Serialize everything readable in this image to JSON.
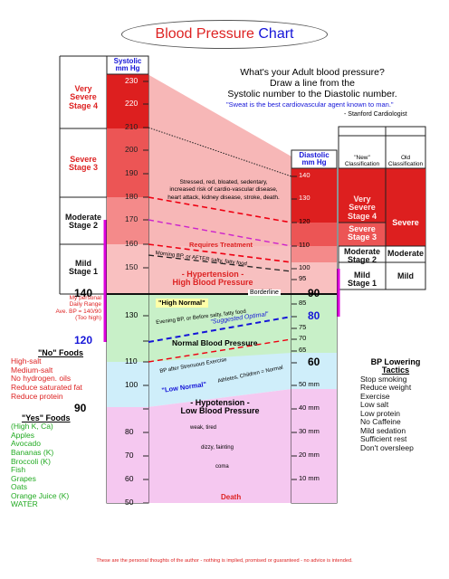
{
  "title": {
    "part1": "Blood Pressure",
    "part2": "Chart"
  },
  "intro": {
    "question": "What's your Adult blood pressure?",
    "instruction1": "Draw a line from the",
    "instruction2": "Systolic number to the Diastolic number.",
    "quote": "\"Sweat is the best cardiovascular agent known to man.\"",
    "cite": "- Stanford Cardiologist"
  },
  "systolic": {
    "header1": "Systolic",
    "header2": "mm Hg",
    "ticks": [
      "230",
      "220",
      "210",
      "200",
      "190",
      "180",
      "170",
      "160",
      "150",
      "140",
      "130",
      "120",
      "110",
      "100",
      "90",
      "80",
      "70",
      "60",
      "50"
    ]
  },
  "diastolic": {
    "header1": "Diastolic",
    "header2": "mm Hg",
    "ticks": [
      "140",
      "130",
      "120",
      "110",
      "100",
      "95",
      "90",
      "85",
      "80",
      "75",
      "70",
      "65",
      "60",
      "50 mm",
      "40 mm",
      "30 mm",
      "20 mm",
      "10 mm"
    ]
  },
  "left_stages": [
    {
      "l1": "Very",
      "l2": "Severe",
      "l3": "Stage 4"
    },
    {
      "l1": "Severe",
      "l2": "Stage 3",
      "l3": ""
    },
    {
      "l1": "Moderate",
      "l2": "Stage 2",
      "l3": ""
    },
    {
      "l1": "Mild",
      "l2": "Stage 1",
      "l3": ""
    }
  ],
  "right_new": {
    "header1": "\"New\"",
    "header2": "Classification",
    "very_severe": [
      "Very",
      "Severe",
      "Stage 4"
    ],
    "severe": [
      "Severe",
      "Stage 3"
    ],
    "moderate": [
      "Moderate",
      "Stage 2"
    ],
    "mild": [
      "Mild",
      "Stage 1"
    ]
  },
  "right_old": {
    "header1": "Old",
    "header2": "Classification",
    "severe": "Severe",
    "moderate": "Moderate",
    "mild": "Mild"
  },
  "zones": {
    "stressed": [
      "Stressed, red, bloated, sedentary,",
      "increased risk of cardio-vascular disease,",
      "heart attack, kidney disease, stroke, death."
    ],
    "requires_treatment": "Requires Treatment",
    "morning_bp": "Morning BP, or AFTER salty, fatty food",
    "hypertension1": "- Hypertension -",
    "hypertension2": "High Blood Pressure",
    "borderline": "Borderline",
    "high_normal": "\"High Normal\"",
    "evening_bp": "Evening BP, or Before salty, fatty food",
    "suggested_optimal": "\"Suggested Optimal\"",
    "normal_bp": "Normal Blood Pressure",
    "bp_after_exercise": "BP after Strenuous Exercise",
    "low_normal": "\"Low Normal\"",
    "athletes": "Athletes, Children = Normal",
    "hypotension1": "- Hypotension -",
    "hypotension2": "Low Blood Pressure",
    "weak": "weak, tired",
    "dizzy": "dizzy, fainting",
    "coma": "coma",
    "death": "Death"
  },
  "personal": [
    "My personal",
    "Daily Range",
    "Ave. BP = 140/90",
    "(Too high)"
  ],
  "no_foods": {
    "title": "\"No\" Foods",
    "items": [
      "High-salt",
      "Medium-salt",
      "No hydrogen. oils",
      "Reduce saturated fat",
      "Reduce protein"
    ]
  },
  "yes_foods": {
    "title": "\"Yes\" Foods",
    "items": [
      "(High K, Ca)",
      "Apples",
      "Avocado",
      "Bananas (K)",
      "Broccoli (K)",
      "Fish",
      "Grapes",
      "Oats",
      "Orange Juice (K)",
      "WATER"
    ]
  },
  "tactics": {
    "title1": "BP Lowering",
    "title2": "Tactics",
    "items": [
      "Stop smoking",
      "Reduce weight",
      "Exercise",
      "Low salt",
      "Low protein",
      "No Caffeine",
      "Mild sedation",
      "Sufficient rest",
      "Don't oversleep"
    ]
  },
  "footer": "These are the personal thoughts of the author - nothing is implied, promised or guaranteed - no advice is intended.",
  "colors": {
    "red": "#dd2222",
    "pink": "#f7b7b7",
    "green": "#c8f0c8",
    "blue": "#1515d8",
    "lavender": "#f5c8f0"
  }
}
